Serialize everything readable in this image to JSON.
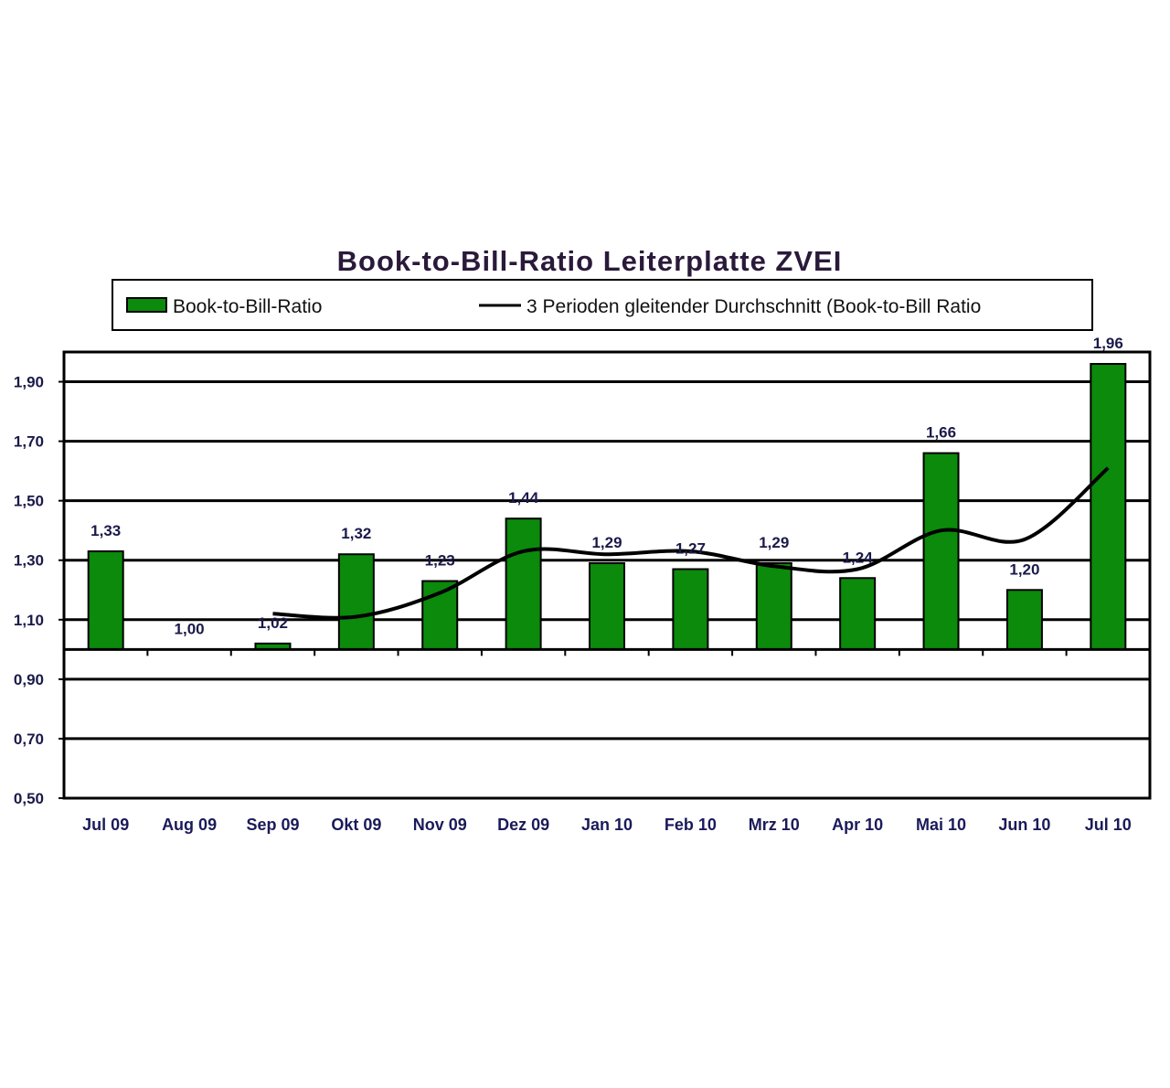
{
  "chart_data": {
    "type": "bar",
    "title": "Book-to-Bill-Ratio Leiterplatte ZVEI",
    "xlabel": "",
    "ylabel": "",
    "categories": [
      "Jul 09",
      "Aug 09",
      "Sep 09",
      "Okt 09",
      "Nov 09",
      "Dez 09",
      "Jan 10",
      "Feb 10",
      "Mrz 10",
      "Apr 10",
      "Mai 10",
      "Jun 10",
      "Jul 10"
    ],
    "series": [
      {
        "name": "Book-to-Bill-Ratio",
        "type": "bar",
        "color": "#0b8a0b",
        "values": [
          1.33,
          1.0,
          1.02,
          1.32,
          1.23,
          1.44,
          1.29,
          1.27,
          1.29,
          1.24,
          1.66,
          1.2,
          1.96
        ],
        "labels": [
          "1,33",
          "1,00",
          "1,02",
          "1,32",
          "1,23",
          "1,44",
          "1,29",
          "1,27",
          "1,29",
          "1,24",
          "1,66",
          "1,20",
          "1,96"
        ]
      },
      {
        "name": "3 Perioden gleitender Durchschnitt (Book-to-Bill Ratio",
        "type": "line",
        "color": "#000000",
        "values": [
          null,
          null,
          1.12,
          1.11,
          1.19,
          1.33,
          1.32,
          1.33,
          1.28,
          1.27,
          1.4,
          1.37,
          1.61
        ]
      }
    ],
    "bar_baseline": 1.0,
    "ylim": [
      0.5,
      2.0
    ],
    "yticks": [
      0.5,
      0.7,
      0.9,
      1.1,
      1.3,
      1.5,
      1.7,
      1.9
    ],
    "ytick_labels": [
      "0,50",
      "0,70",
      "0,90",
      "1,10",
      "1,30",
      "1,50",
      "1,70",
      "1,90"
    ],
    "grid": true,
    "legend_position": "top"
  }
}
